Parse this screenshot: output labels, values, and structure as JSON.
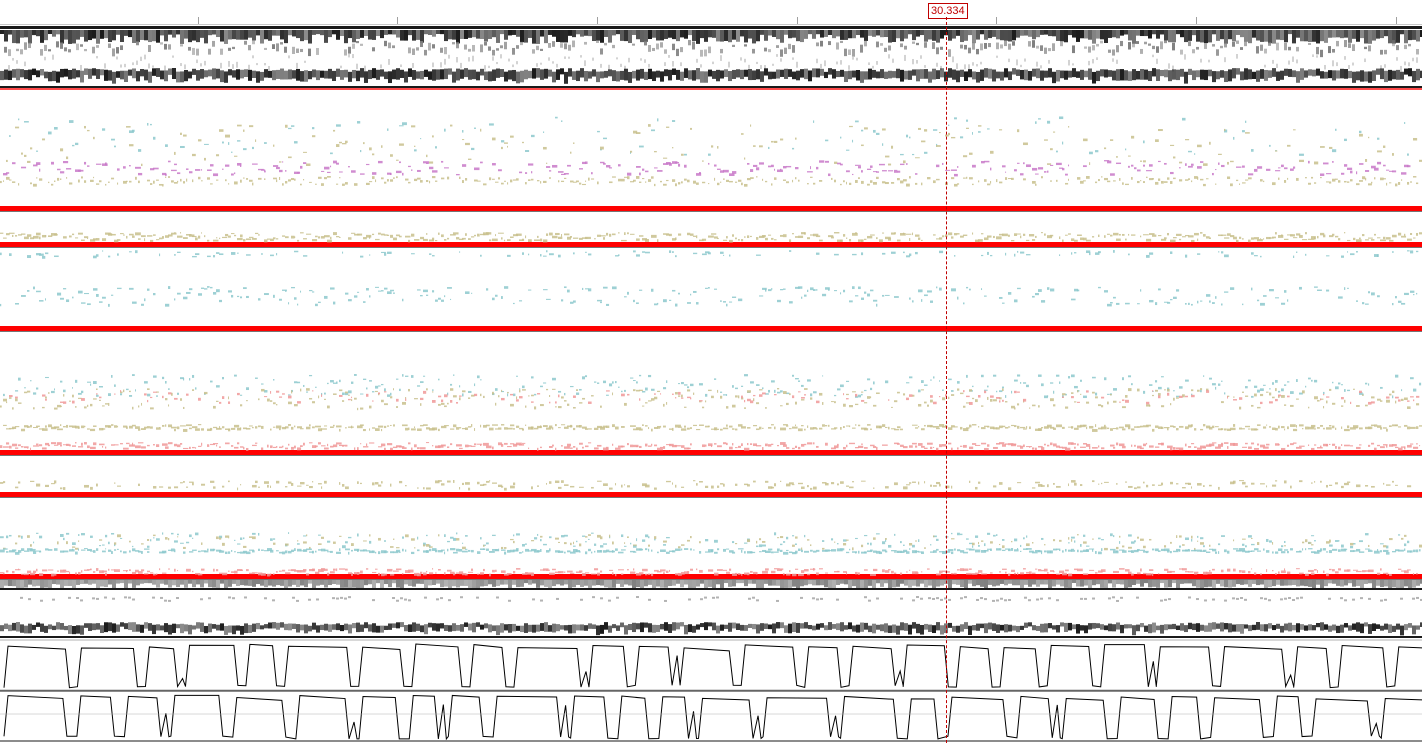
{
  "cursor": {
    "label": "30.334",
    "color": "#c00000"
  },
  "colors": {
    "spectrogram_dark": "#1a1a1a",
    "spectrogram_mid": "#808080",
    "spectrogram_light": "#c8c8c8",
    "formant_red": "#ff0000",
    "pitch_teal": "#8cc8cc",
    "energy_khaki": "#c8c08c",
    "voicing_pink": "#f09898",
    "label_violet": "#c878c8",
    "waveform_line": "#000000",
    "grid_line": "#b0b0b0"
  },
  "tracks": [
    {
      "id": "spectrogram-top",
      "kind": "spectrogram"
    },
    {
      "id": "channel-1",
      "kind": "scatter-band"
    },
    {
      "id": "channel-2",
      "kind": "scatter-band"
    },
    {
      "id": "channel-3",
      "kind": "scatter-band"
    },
    {
      "id": "channel-4",
      "kind": "scatter-band"
    },
    {
      "id": "channel-5",
      "kind": "scatter-band"
    },
    {
      "id": "channel-6",
      "kind": "scatter-band"
    },
    {
      "id": "channel-7",
      "kind": "scatter-band"
    },
    {
      "id": "spectrogram-bottom",
      "kind": "spectrogram"
    },
    {
      "id": "waveform-1",
      "kind": "line"
    },
    {
      "id": "waveform-2",
      "kind": "line"
    }
  ]
}
